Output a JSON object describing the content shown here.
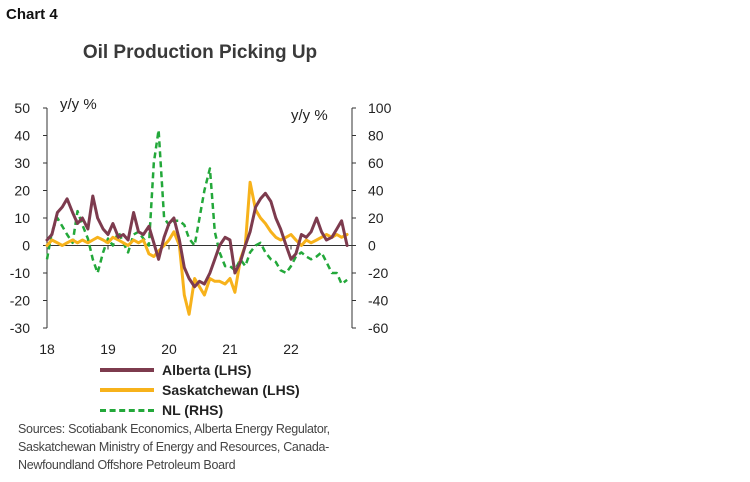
{
  "chart_label": "Chart 4",
  "chart_data": {
    "type": "line",
    "title": "Oil Production Picking Up",
    "y_left_label": "y/y %",
    "y_right_label": "y/y %",
    "y_left_lim": [
      -30,
      50
    ],
    "y_right_lim": [
      -60,
      100
    ],
    "y_left_ticks": [
      "50",
      "40",
      "30",
      "20",
      "10",
      "0",
      "-10",
      "-20",
      "-30"
    ],
    "y_right_ticks": [
      "100",
      "80",
      "60",
      "40",
      "20",
      "0",
      "-20",
      "-40",
      "-60"
    ],
    "x_ticks": [
      "18",
      "19",
      "20",
      "21",
      "22"
    ],
    "x_tick_values": [
      2018,
      2019,
      2020,
      2021,
      2022
    ],
    "x_range": [
      2018.0,
      2023.0
    ],
    "grid": false,
    "series": [
      {
        "name": "Alberta (LHS)",
        "axis": "left",
        "color": "#7d3b4e",
        "dash": "solid",
        "points": [
          [
            2018.0,
            2
          ],
          [
            2018.08,
            4
          ],
          [
            2018.17,
            12
          ],
          [
            2018.25,
            14
          ],
          [
            2018.33,
            17
          ],
          [
            2018.42,
            12
          ],
          [
            2018.5,
            8
          ],
          [
            2018.58,
            10
          ],
          [
            2018.67,
            6
          ],
          [
            2018.75,
            18
          ],
          [
            2018.83,
            10
          ],
          [
            2018.92,
            6
          ],
          [
            2019.0,
            4
          ],
          [
            2019.08,
            8
          ],
          [
            2019.17,
            3
          ],
          [
            2019.25,
            4
          ],
          [
            2019.33,
            2
          ],
          [
            2019.42,
            12
          ],
          [
            2019.5,
            5
          ],
          [
            2019.58,
            4
          ],
          [
            2019.67,
            7
          ],
          [
            2019.75,
            1
          ],
          [
            2019.83,
            -5
          ],
          [
            2019.92,
            3
          ],
          [
            2020.0,
            8
          ],
          [
            2020.08,
            10
          ],
          [
            2020.17,
            2
          ],
          [
            2020.25,
            -8
          ],
          [
            2020.33,
            -12
          ],
          [
            2020.42,
            -15
          ],
          [
            2020.5,
            -13
          ],
          [
            2020.58,
            -14
          ],
          [
            2020.67,
            -10
          ],
          [
            2020.75,
            -5
          ],
          [
            2020.83,
            0
          ],
          [
            2020.92,
            3
          ],
          [
            2021.0,
            2
          ],
          [
            2021.08,
            -10
          ],
          [
            2021.17,
            -6
          ],
          [
            2021.25,
            0
          ],
          [
            2021.33,
            5
          ],
          [
            2021.42,
            14
          ],
          [
            2021.5,
            17
          ],
          [
            2021.58,
            19
          ],
          [
            2021.67,
            16
          ],
          [
            2021.75,
            10
          ],
          [
            2021.83,
            6
          ],
          [
            2021.92,
            0
          ],
          [
            2022.0,
            -5
          ],
          [
            2022.08,
            -3
          ],
          [
            2022.17,
            4
          ],
          [
            2022.25,
            3
          ],
          [
            2022.33,
            5
          ],
          [
            2022.42,
            10
          ],
          [
            2022.5,
            5
          ],
          [
            2022.58,
            2
          ],
          [
            2022.67,
            3
          ],
          [
            2022.75,
            6
          ],
          [
            2022.83,
            9
          ],
          [
            2022.92,
            0
          ]
        ]
      },
      {
        "name": "Saskatchewan (LHS)",
        "axis": "left",
        "color": "#f7b21b",
        "dash": "solid",
        "points": [
          [
            2018.0,
            0
          ],
          [
            2018.08,
            2
          ],
          [
            2018.17,
            1
          ],
          [
            2018.25,
            0
          ],
          [
            2018.33,
            1
          ],
          [
            2018.42,
            2
          ],
          [
            2018.5,
            1
          ],
          [
            2018.58,
            2
          ],
          [
            2018.67,
            1
          ],
          [
            2018.75,
            2
          ],
          [
            2018.83,
            3
          ],
          [
            2018.92,
            2
          ],
          [
            2019.0,
            1
          ],
          [
            2019.08,
            3
          ],
          [
            2019.17,
            2
          ],
          [
            2019.25,
            1
          ],
          [
            2019.33,
            0
          ],
          [
            2019.42,
            2
          ],
          [
            2019.5,
            1
          ],
          [
            2019.58,
            2
          ],
          [
            2019.67,
            -3
          ],
          [
            2019.75,
            -4
          ],
          [
            2019.83,
            -2
          ],
          [
            2019.92,
            0
          ],
          [
            2020.0,
            2
          ],
          [
            2020.08,
            5
          ],
          [
            2020.17,
            0
          ],
          [
            2020.25,
            -18
          ],
          [
            2020.33,
            -25
          ],
          [
            2020.42,
            -12
          ],
          [
            2020.5,
            -15
          ],
          [
            2020.58,
            -18
          ],
          [
            2020.67,
            -12
          ],
          [
            2020.75,
            -13
          ],
          [
            2020.83,
            -13
          ],
          [
            2020.92,
            -14
          ],
          [
            2021.0,
            -12
          ],
          [
            2021.08,
            -17
          ],
          [
            2021.17,
            -5
          ],
          [
            2021.25,
            0
          ],
          [
            2021.33,
            23
          ],
          [
            2021.42,
            13
          ],
          [
            2021.5,
            10
          ],
          [
            2021.58,
            8
          ],
          [
            2021.67,
            5
          ],
          [
            2021.75,
            3
          ],
          [
            2021.83,
            2
          ],
          [
            2021.92,
            3
          ],
          [
            2022.0,
            4
          ],
          [
            2022.08,
            2
          ],
          [
            2022.17,
            0
          ],
          [
            2022.25,
            2
          ],
          [
            2022.33,
            1
          ],
          [
            2022.42,
            2
          ],
          [
            2022.5,
            3
          ],
          [
            2022.58,
            4
          ],
          [
            2022.67,
            3
          ],
          [
            2022.75,
            4
          ],
          [
            2022.83,
            3
          ],
          [
            2022.92,
            4
          ]
        ]
      },
      {
        "name": "NL (RHS)",
        "axis": "right",
        "color": "#23a83a",
        "dash": "dashed",
        "points": [
          [
            2018.0,
            -10
          ],
          [
            2018.08,
            10
          ],
          [
            2018.17,
            20
          ],
          [
            2018.25,
            14
          ],
          [
            2018.33,
            8
          ],
          [
            2018.42,
            2
          ],
          [
            2018.5,
            25
          ],
          [
            2018.58,
            15
          ],
          [
            2018.67,
            5
          ],
          [
            2018.75,
            -10
          ],
          [
            2018.83,
            -20
          ],
          [
            2018.92,
            -5
          ],
          [
            2019.0,
            5
          ],
          [
            2019.08,
            0
          ],
          [
            2019.17,
            10
          ],
          [
            2019.25,
            2
          ],
          [
            2019.33,
            -5
          ],
          [
            2019.42,
            8
          ],
          [
            2019.5,
            10
          ],
          [
            2019.58,
            5
          ],
          [
            2019.67,
            0
          ],
          [
            2019.75,
            60
          ],
          [
            2019.83,
            84
          ],
          [
            2019.92,
            20
          ],
          [
            2020.0,
            15
          ],
          [
            2020.08,
            18
          ],
          [
            2020.17,
            18
          ],
          [
            2020.25,
            15
          ],
          [
            2020.33,
            5
          ],
          [
            2020.42,
            0
          ],
          [
            2020.5,
            20
          ],
          [
            2020.58,
            40
          ],
          [
            2020.67,
            56
          ],
          [
            2020.75,
            10
          ],
          [
            2020.83,
            -5
          ],
          [
            2020.92,
            -15
          ],
          [
            2021.0,
            -15
          ],
          [
            2021.08,
            -18
          ],
          [
            2021.17,
            -10
          ],
          [
            2021.25,
            -15
          ],
          [
            2021.33,
            -5
          ],
          [
            2021.42,
            0
          ],
          [
            2021.5,
            2
          ],
          [
            2021.58,
            -5
          ],
          [
            2021.67,
            -10
          ],
          [
            2021.75,
            -12
          ],
          [
            2021.83,
            -18
          ],
          [
            2021.92,
            -20
          ],
          [
            2022.0,
            -15
          ],
          [
            2022.08,
            -8
          ],
          [
            2022.17,
            -5
          ],
          [
            2022.25,
            -8
          ],
          [
            2022.33,
            -10
          ],
          [
            2022.42,
            -8
          ],
          [
            2022.5,
            -5
          ],
          [
            2022.58,
            -12
          ],
          [
            2022.67,
            -20
          ],
          [
            2022.75,
            -20
          ],
          [
            2022.83,
            -28
          ],
          [
            2022.92,
            -25
          ]
        ]
      }
    ]
  },
  "sources": "Sources: Scotiabank Economics, Alberta Energy Regulator, Saskatchewan Ministry of Energy and Resources, Canada-Newfoundland Offshore Petroleum Board"
}
